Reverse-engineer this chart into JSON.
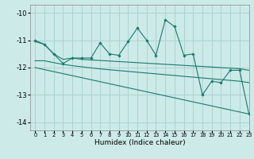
{
  "xlabel": "Humidex (Indice chaleur)",
  "ylabel": "",
  "bg_color": "#cceae8",
  "grid_color": "#aad4d0",
  "line_color": "#1a7a6e",
  "xlim": [
    -0.5,
    23
  ],
  "ylim": [
    -14.3,
    -9.7
  ],
  "yticks": [
    -14,
    -13,
    -12,
    -11,
    -10
  ],
  "xticks": [
    0,
    1,
    2,
    3,
    4,
    5,
    6,
    7,
    8,
    9,
    10,
    11,
    12,
    13,
    14,
    15,
    16,
    17,
    18,
    19,
    20,
    21,
    22,
    23
  ],
  "series1_x": [
    0,
    1,
    2,
    3,
    4,
    5,
    6,
    7,
    8,
    9,
    10,
    11,
    12,
    13,
    14,
    15,
    16,
    17,
    18,
    19,
    20,
    21,
    22,
    23
  ],
  "series1_y": [
    -11.0,
    -11.15,
    -11.5,
    -11.85,
    -11.65,
    -11.65,
    -11.65,
    -11.1,
    -11.5,
    -11.55,
    -11.05,
    -10.55,
    -11.0,
    -11.55,
    -10.25,
    -10.5,
    -11.55,
    -11.5,
    -13.0,
    -12.5,
    -12.55,
    -12.1,
    -12.1,
    -13.7
  ],
  "series2_x": [
    0,
    1,
    2,
    3,
    4,
    5,
    6,
    7,
    8,
    9,
    10,
    11,
    12,
    13,
    14,
    15,
    16,
    17,
    18,
    19,
    20,
    21,
    22,
    23
  ],
  "series2_y": [
    -11.05,
    -11.15,
    -11.5,
    -11.7,
    -11.65,
    -11.7,
    -11.72,
    -11.74,
    -11.76,
    -11.78,
    -11.8,
    -11.82,
    -11.84,
    -11.86,
    -11.88,
    -11.9,
    -11.92,
    -11.94,
    -11.96,
    -11.98,
    -12.0,
    -12.02,
    -12.04,
    -12.1
  ],
  "series3_x": [
    0,
    1,
    2,
    3,
    4,
    5,
    6,
    7,
    8,
    9,
    10,
    11,
    12,
    13,
    14,
    15,
    16,
    17,
    18,
    19,
    20,
    21,
    22,
    23
  ],
  "series3_y": [
    -11.75,
    -11.75,
    -11.82,
    -11.88,
    -11.93,
    -11.97,
    -12.01,
    -12.05,
    -12.08,
    -12.11,
    -12.14,
    -12.17,
    -12.2,
    -12.23,
    -12.26,
    -12.29,
    -12.32,
    -12.35,
    -12.38,
    -12.41,
    -12.44,
    -12.47,
    -12.5,
    -12.55
  ],
  "series4_x": [
    0,
    23
  ],
  "series4_y": [
    -12.0,
    -13.7
  ]
}
